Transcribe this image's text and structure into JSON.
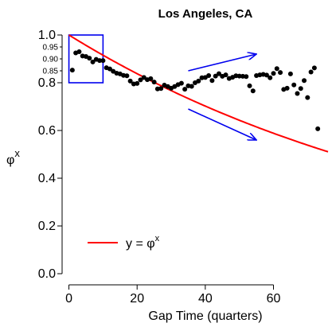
{
  "chart_data": {
    "type": "scatter",
    "title": "Los Angeles, CA",
    "xlabel": "Gap Time (quarters)",
    "ylabel": "φ",
    "ylabel_superscript": "x",
    "xlim": [
      -2,
      76
    ],
    "ylim": [
      -0.02,
      1.02
    ],
    "x_ticks": [
      0,
      20,
      40,
      60
    ],
    "y_ticks": [
      {
        "value": 0.0,
        "label": "0.0"
      },
      {
        "value": 0.2,
        "label": "0.2"
      },
      {
        "value": 0.4,
        "label": "0.4"
      },
      {
        "value": 0.6,
        "label": "0.6"
      },
      {
        "value": 0.8,
        "label": "0.8"
      },
      {
        "value": 1.0,
        "label": "1.0"
      }
    ],
    "y_ticks_minor": [
      {
        "value": 0.85,
        "label": "0.85"
      },
      {
        "value": 0.9,
        "label": "0.90"
      },
      {
        "value": 0.95,
        "label": "0.95"
      }
    ],
    "points": {
      "color": "#000000",
      "x": [
        1,
        2,
        3,
        4,
        5,
        6,
        7,
        8,
        9,
        10,
        11,
        12,
        13,
        14,
        15,
        16,
        17,
        18,
        19,
        20,
        21,
        22,
        23,
        24,
        25,
        26,
        27,
        28,
        29,
        30,
        31,
        32,
        33,
        34,
        35,
        36,
        37,
        38,
        39,
        40,
        41,
        42,
        43,
        44,
        45,
        46,
        47,
        48,
        49,
        50,
        51,
        52,
        53,
        54,
        55,
        56,
        57,
        58,
        59,
        60,
        61,
        62,
        63,
        64,
        65,
        66,
        67,
        68,
        69,
        70,
        71,
        72,
        73
      ],
      "y": [
        0.853,
        0.925,
        0.93,
        0.912,
        0.91,
        0.903,
        0.887,
        0.898,
        0.893,
        0.893,
        0.863,
        0.858,
        0.848,
        0.84,
        0.837,
        0.831,
        0.829,
        0.807,
        0.795,
        0.797,
        0.812,
        0.822,
        0.813,
        0.817,
        0.803,
        0.774,
        0.776,
        0.79,
        0.784,
        0.777,
        0.784,
        0.792,
        0.798,
        0.773,
        0.787,
        0.785,
        0.8,
        0.807,
        0.821,
        0.822,
        0.83,
        0.809,
        0.828,
        0.838,
        0.827,
        0.833,
        0.818,
        0.823,
        0.829,
        0.828,
        0.827,
        0.826,
        0.787,
        0.766,
        0.83,
        0.833,
        0.835,
        0.832,
        0.821,
        0.839,
        0.859,
        0.843,
        0.772,
        0.777,
        0.837,
        0.791,
        0.755,
        0.776,
        0.809,
        0.738,
        0.845,
        0.862,
        0.607
      ]
    },
    "curve": {
      "formula": "y = φ^x",
      "phi": 0.9912,
      "color": "#ff0000"
    },
    "legend": {
      "placement": "bottom-left",
      "label": "y = φ",
      "label_superscript": "x"
    },
    "annotations": {
      "box": {
        "x": [
          0,
          10
        ],
        "y": [
          0.8,
          1.0
        ],
        "color": "#0000ee"
      },
      "arrows": [
        {
          "from": [
            35,
            0.85
          ],
          "to": [
            55,
            0.92
          ],
          "color": "#0000ee"
        },
        {
          "from": [
            35,
            0.69
          ],
          "to": [
            55,
            0.56
          ],
          "color": "#0000ee"
        }
      ]
    },
    "grid": false
  }
}
